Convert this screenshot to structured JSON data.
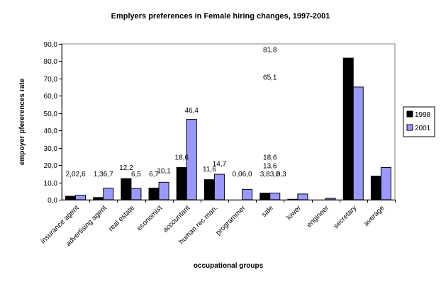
{
  "chart_data": {
    "type": "bar",
    "title": "Emplyers preferences in Female hiring changes, 1997-2001",
    "xlabel": "occupational groups",
    "ylabel": "empoyer pfererences rate",
    "ylim": [
      0,
      90
    ],
    "yticks": [
      "0,0",
      "10,0",
      "20,0",
      "30,0",
      "40,0",
      "50,0",
      "60,0",
      "70,0",
      "80,0",
      "90,0"
    ],
    "grid": true,
    "legend_position": "right",
    "categories": [
      "insurance agent",
      "advertising agent",
      "real estate",
      "economist",
      "accountant",
      "human rec.man.",
      "programmer",
      "sale",
      "lower",
      "engineer",
      "secretary",
      "average"
    ],
    "series": [
      {
        "name": "1998",
        "color": "#000000",
        "values": [
          2.0,
          1.3,
          12.2,
          6.7,
          18.6,
          11.6,
          0.0,
          3.8,
          0.3,
          0.0,
          81.8,
          13.6
        ]
      },
      {
        "name": "2001",
        "color": "#9999ff",
        "values": [
          2.6,
          6.7,
          6.5,
          10.1,
          46.4,
          14.7,
          6.0,
          3.8,
          3.3,
          0.8,
          65.1,
          18.6
        ]
      }
    ],
    "data_labels": [
      {
        "text": "2,0",
        "cat": 0,
        "series": 0,
        "value": 2.0,
        "label_y": 13.4
      },
      {
        "text": "2,6",
        "cat": 0,
        "series": 1,
        "value": 2.6,
        "label_y": 13.4
      },
      {
        "text": "1,3",
        "cat": 1,
        "series": 0,
        "value": 1.3,
        "label_y": 13.4
      },
      {
        "text": "6,7",
        "cat": 1,
        "series": 1,
        "value": 6.7,
        "label_y": 13.4
      },
      {
        "text": "12,2",
        "cat": 2,
        "series": 0,
        "value": 12.2,
        "label_y": 17.2
      },
      {
        "text": "6,5",
        "cat": 2,
        "series": 1,
        "value": 6.5,
        "label_y": 13.4
      },
      {
        "text": "6,7",
        "cat": 3,
        "series": 0,
        "value": 6.7,
        "label_y": 13.4
      },
      {
        "text": "10,1",
        "cat": 3,
        "series": 1,
        "value": 10.1,
        "label_y": 15.4
      },
      {
        "text": "18,6",
        "cat": 4,
        "series": 0,
        "value": 18.6,
        "label_y": 23.2
      },
      {
        "text": "46,4",
        "cat": 4,
        "series": 1,
        "value": 46.4,
        "label_y": 50.3
      },
      {
        "text": "11,6",
        "cat": 5,
        "series": 0,
        "value": 11.6,
        "label_y": 16.3
      },
      {
        "text": "14,7",
        "cat": 5,
        "series": 1,
        "value": 14.7,
        "label_y": 19.4
      },
      {
        "text": "0,0",
        "cat": 6,
        "series": 0,
        "value": 0.0,
        "label_y": 13.4
      },
      {
        "text": "6,0",
        "cat": 6,
        "series": 1,
        "value": 6.0,
        "label_y": 13.4
      },
      {
        "text": "3,8",
        "cat": 7,
        "series": 0,
        "value": 3.8,
        "label_y": 13.4
      },
      {
        "text": "3,8",
        "cat": 7,
        "series": 1,
        "value": 3.8,
        "label_y": 13.4
      },
      {
        "text": "0,3",
        "cat": 7,
        "series": 1,
        "value": 0.3,
        "label_y": 13.4,
        "dx": 9
      },
      {
        "text": "18,6",
        "cat": 7,
        "series": null,
        "value": 18.6,
        "label_y": 23.2
      },
      {
        "text": "13,6",
        "cat": 7,
        "series": null,
        "value": 13.6,
        "label_y": 18.2
      },
      {
        "text": "81,8",
        "cat": 7,
        "series": null,
        "value": 81.8,
        "label_y": 85.2
      },
      {
        "text": "65,1",
        "cat": 7,
        "series": null,
        "value": 65.1,
        "label_y": 69.4
      }
    ]
  }
}
